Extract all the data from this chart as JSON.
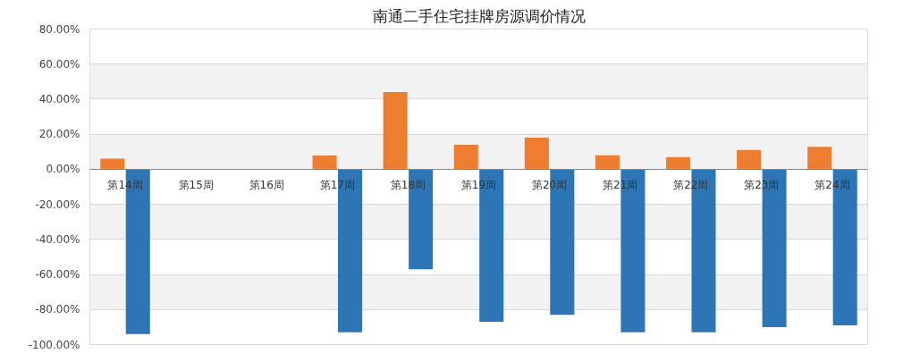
{
  "chart_data": {
    "type": "bar",
    "title": "南通二手住宅挂牌房源调价情况",
    "categories": [
      "第14周",
      "第15周",
      "第16周",
      "第17周",
      "第18周",
      "第19周",
      "第20周",
      "第21周",
      "第22周",
      "第23周",
      "第24周"
    ],
    "series": [
      {
        "color": "#ed7d31",
        "values": [
          6,
          null,
          null,
          7.8,
          44,
          14,
          18,
          8,
          7,
          11,
          12.8
        ]
      },
      {
        "color": "#2e75b6",
        "values": [
          -94,
          null,
          null,
          -93,
          -57,
          -87,
          -83,
          -93,
          -93,
          -90,
          -89
        ]
      }
    ],
    "ylim": [
      -100,
      80
    ],
    "yticks": [
      {
        "value": -100,
        "label": "-100.00%"
      },
      {
        "value": -80,
        "label": "-80.00%"
      },
      {
        "value": -60,
        "label": "-60.00%"
      },
      {
        "value": -40,
        "label": "-40.00%"
      },
      {
        "value": -20,
        "label": "-20.00%"
      },
      {
        "value": 0,
        "label": "0.00%"
      },
      {
        "value": 20,
        "label": "20.00%"
      },
      {
        "value": 40,
        "label": "40.00%"
      },
      {
        "value": 60,
        "label": "60.00%"
      },
      {
        "value": 80,
        "label": "80.00%"
      }
    ],
    "grid": "y"
  }
}
